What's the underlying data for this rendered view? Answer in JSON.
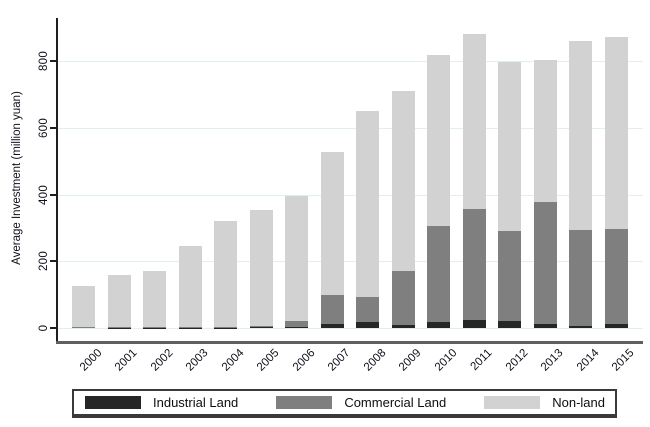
{
  "chart_data": {
    "type": "bar",
    "stacked": true,
    "title": "",
    "xlabel": "",
    "ylabel": "Average Investment (million yuan)",
    "categories": [
      "2000",
      "2001",
      "2002",
      "2003",
      "2004",
      "2005",
      "2006",
      "2007",
      "2008",
      "2009",
      "2010",
      "2011",
      "2012",
      "2013",
      "2014",
      "2015"
    ],
    "series": [
      {
        "name": "Industrial Land",
        "color": "#262626",
        "values": [
          0,
          1,
          1,
          1,
          1,
          2,
          4,
          13,
          18,
          9,
          17,
          24,
          20,
          13,
          7,
          12
        ]
      },
      {
        "name": "Commercial Land",
        "color": "#7f7f7f",
        "values": [
          2,
          3,
          3,
          2,
          3,
          4,
          18,
          86,
          76,
          163,
          290,
          333,
          270,
          364,
          287,
          285
        ]
      },
      {
        "name": "Non-land",
        "color": "#d2d2d2",
        "values": [
          123,
          154,
          168,
          242,
          316,
          349,
          373,
          428,
          558,
          538,
          513,
          526,
          507,
          427,
          566,
          577
        ]
      }
    ],
    "stack_totals": [
      125,
      158,
      172,
      245,
      320,
      355,
      395,
      527,
      652,
      710,
      820,
      883,
      797,
      804,
      860,
      874
    ],
    "ylim": [
      0,
      930
    ],
    "yticks": [
      0,
      200,
      400,
      600,
      800
    ],
    "grid": true,
    "gridline_color": "#e2eff0",
    "legend_position": "bottom-outside",
    "bar_order_bottom_to_top": [
      "Industrial Land",
      "Commercial Land",
      "Non-land"
    ]
  }
}
